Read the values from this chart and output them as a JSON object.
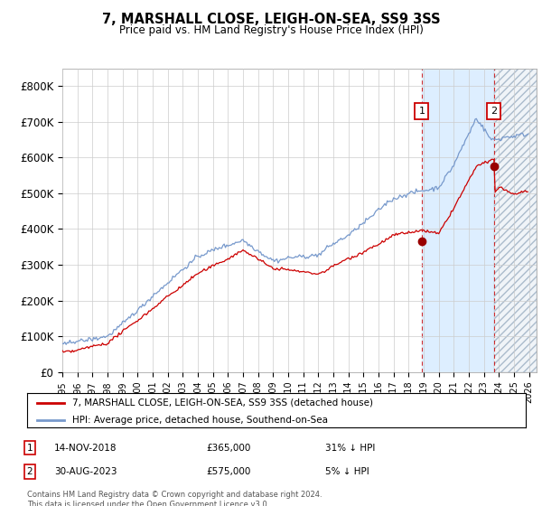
{
  "title": "7, MARSHALL CLOSE, LEIGH-ON-SEA, SS9 3SS",
  "subtitle": "Price paid vs. HM Land Registry's House Price Index (HPI)",
  "hpi_color": "#7799cc",
  "price_color": "#cc0000",
  "dot_color": "#990000",
  "ylim": [
    0,
    850000
  ],
  "yticks": [
    0,
    100000,
    200000,
    300000,
    400000,
    500000,
    600000,
    700000,
    800000
  ],
  "ytick_labels": [
    "£0",
    "£100K",
    "£200K",
    "£300K",
    "£400K",
    "£500K",
    "£600K",
    "£700K",
    "£800K"
  ],
  "legend_line1": "7, MARSHALL CLOSE, LEIGH-ON-SEA, SS9 3SS (detached house)",
  "legend_line2": "HPI: Average price, detached house, Southend-on-Sea",
  "footer": "Contains HM Land Registry data © Crown copyright and database right 2024.\nThis data is licensed under the Open Government Licence v3.0.",
  "vline_color": "#cc0000",
  "t1": 2018.87,
  "t2": 2023.66,
  "p1": 365000,
  "p2": 575000,
  "shade_color": "#ddeeff",
  "hatch_color": "#aabbcc",
  "xmin": 1995,
  "xmax": 2026.5
}
